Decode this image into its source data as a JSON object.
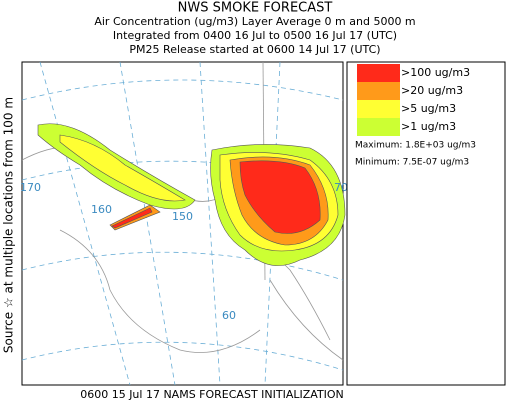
{
  "header": {
    "title": "NWS SMOKE FORECAST",
    "subtitle_lines": [
      "Air Concentration (ug/m3) Layer Average    0 m and  5000 m",
      "Integrated from 0400 16 Jul to 0500 16 Jul 17 (UTC)",
      "PM25 Release started at 0600 14 Jul 17 (UTC)"
    ]
  },
  "side_label": "Source ☆   at multiple locations   from   100 m",
  "map": {
    "grid_labels": [
      "170",
      "160",
      "150",
      "60",
      "70"
    ]
  },
  "legend": {
    "items": [
      {
        "label": ">100 ug/m3",
        "color": "#ff2a1a"
      },
      {
        "label": ">20 ug/m3",
        "color": "#ff9a1a"
      },
      {
        "label": ">5 ug/m3",
        "color": "#ffff33"
      },
      {
        "label": ">1 ug/m3",
        "color": "#ccff33"
      }
    ],
    "maximum": "Maximum: 1.8E+03 ug/m3",
    "minimum": "Minimum: 7.5E-07 ug/m3"
  },
  "footer": "0600 15 Jul 17 NAMS FORECAST INITIALIZATION"
}
